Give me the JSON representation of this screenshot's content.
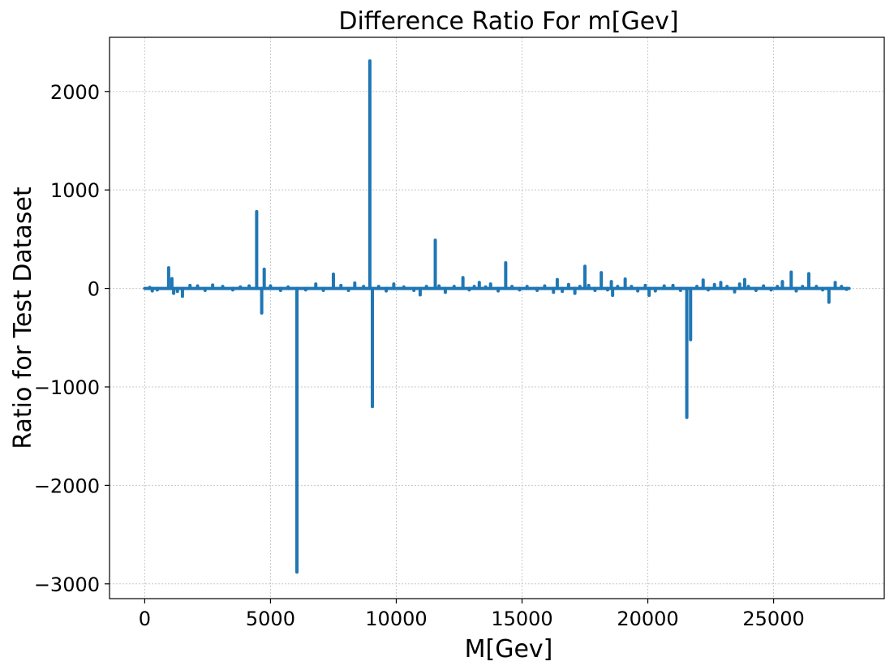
{
  "chart_data": {
    "type": "line",
    "title": "Difference Ratio For m[Gev]",
    "xlabel": "M[Gev]",
    "ylabel": "Ratio for Test Dataset",
    "xlim": [
      -1400,
      29400
    ],
    "ylim": [
      -3150,
      2550
    ],
    "xticks": [
      0,
      5000,
      10000,
      15000,
      20000,
      25000
    ],
    "xtick_labels": [
      "0",
      "5000",
      "10000",
      "15000",
      "20000",
      "25000"
    ],
    "yticks": [
      -3000,
      -2000,
      -1000,
      0,
      1000,
      2000
    ],
    "ytick_labels": [
      "−3000",
      "−2000",
      "−1000",
      "0",
      "1000",
      "2000"
    ],
    "grid": true,
    "color": "#1f77b4",
    "x_range": [
      0,
      28000
    ],
    "spikes": [
      {
        "x": 200,
        "y": 10
      },
      {
        "x": 300,
        "y": -25
      },
      {
        "x": 500,
        "y": -15
      },
      {
        "x": 950,
        "y": 210
      },
      {
        "x": 1080,
        "y": 100
      },
      {
        "x": 1150,
        "y": -50
      },
      {
        "x": 1300,
        "y": -30
      },
      {
        "x": 1500,
        "y": -80
      },
      {
        "x": 1800,
        "y": 30
      },
      {
        "x": 2100,
        "y": 25
      },
      {
        "x": 2400,
        "y": -20
      },
      {
        "x": 2700,
        "y": 35
      },
      {
        "x": 3100,
        "y": 20
      },
      {
        "x": 3500,
        "y": -15
      },
      {
        "x": 3800,
        "y": 15
      },
      {
        "x": 4150,
        "y": 25
      },
      {
        "x": 4450,
        "y": 780
      },
      {
        "x": 4650,
        "y": -250
      },
      {
        "x": 4750,
        "y": 195
      },
      {
        "x": 5000,
        "y": 25
      },
      {
        "x": 5400,
        "y": -20
      },
      {
        "x": 5700,
        "y": 15
      },
      {
        "x": 6050,
        "y": -2880
      },
      {
        "x": 6400,
        "y": -15
      },
      {
        "x": 6800,
        "y": 45
      },
      {
        "x": 7100,
        "y": -20
      },
      {
        "x": 7500,
        "y": 145
      },
      {
        "x": 7800,
        "y": 30
      },
      {
        "x": 8100,
        "y": -20
      },
      {
        "x": 8350,
        "y": 55
      },
      {
        "x": 8700,
        "y": 20
      },
      {
        "x": 8950,
        "y": 2310
      },
      {
        "x": 9050,
        "y": -1200
      },
      {
        "x": 9300,
        "y": 20
      },
      {
        "x": 9600,
        "y": -25
      },
      {
        "x": 9900,
        "y": 45
      },
      {
        "x": 10300,
        "y": 15
      },
      {
        "x": 10700,
        "y": -20
      },
      {
        "x": 10950,
        "y": -65
      },
      {
        "x": 11200,
        "y": 20
      },
      {
        "x": 11550,
        "y": 490
      },
      {
        "x": 11700,
        "y": 25
      },
      {
        "x": 11950,
        "y": -40
      },
      {
        "x": 12300,
        "y": 20
      },
      {
        "x": 12650,
        "y": 110
      },
      {
        "x": 12900,
        "y": -15
      },
      {
        "x": 13100,
        "y": 20
      },
      {
        "x": 13300,
        "y": 60
      },
      {
        "x": 13550,
        "y": 15
      },
      {
        "x": 13750,
        "y": 45
      },
      {
        "x": 14050,
        "y": -25
      },
      {
        "x": 14350,
        "y": 260
      },
      {
        "x": 14600,
        "y": 20
      },
      {
        "x": 14900,
        "y": -15
      },
      {
        "x": 15200,
        "y": 20
      },
      {
        "x": 15600,
        "y": -20
      },
      {
        "x": 15900,
        "y": 25
      },
      {
        "x": 16250,
        "y": -40
      },
      {
        "x": 16400,
        "y": 90
      },
      {
        "x": 16600,
        "y": -30
      },
      {
        "x": 16850,
        "y": 40
      },
      {
        "x": 17100,
        "y": -50
      },
      {
        "x": 17300,
        "y": 20
      },
      {
        "x": 17500,
        "y": 225
      },
      {
        "x": 17650,
        "y": 30
      },
      {
        "x": 17900,
        "y": -20
      },
      {
        "x": 18150,
        "y": 160
      },
      {
        "x": 18400,
        "y": -15
      },
      {
        "x": 18550,
        "y": 70
      },
      {
        "x": 18600,
        "y": -70
      },
      {
        "x": 18800,
        "y": 20
      },
      {
        "x": 19100,
        "y": 95
      },
      {
        "x": 19350,
        "y": 20
      },
      {
        "x": 19600,
        "y": -25
      },
      {
        "x": 19900,
        "y": 30
      },
      {
        "x": 20050,
        "y": -70
      },
      {
        "x": 20300,
        "y": -25
      },
      {
        "x": 20650,
        "y": 25
      },
      {
        "x": 21000,
        "y": 30
      },
      {
        "x": 21300,
        "y": -20
      },
      {
        "x": 21550,
        "y": -1310
      },
      {
        "x": 21700,
        "y": -520
      },
      {
        "x": 21950,
        "y": 20
      },
      {
        "x": 22200,
        "y": 85
      },
      {
        "x": 22400,
        "y": -15
      },
      {
        "x": 22650,
        "y": 40
      },
      {
        "x": 22900,
        "y": 60
      },
      {
        "x": 23150,
        "y": 20
      },
      {
        "x": 23450,
        "y": -35
      },
      {
        "x": 23650,
        "y": 45
      },
      {
        "x": 23850,
        "y": 90
      },
      {
        "x": 24000,
        "y": 20
      },
      {
        "x": 24300,
        "y": -20
      },
      {
        "x": 24600,
        "y": 25
      },
      {
        "x": 24900,
        "y": -15
      },
      {
        "x": 25150,
        "y": 20
      },
      {
        "x": 25350,
        "y": 70
      },
      {
        "x": 25700,
        "y": 165
      },
      {
        "x": 25900,
        "y": -25
      },
      {
        "x": 26150,
        "y": 20
      },
      {
        "x": 26400,
        "y": 150
      },
      {
        "x": 26700,
        "y": 20
      },
      {
        "x": 26950,
        "y": -15
      },
      {
        "x": 27200,
        "y": -140
      },
      {
        "x": 27450,
        "y": 60
      },
      {
        "x": 27700,
        "y": 20
      },
      {
        "x": 27900,
        "y": -10
      }
    ]
  }
}
